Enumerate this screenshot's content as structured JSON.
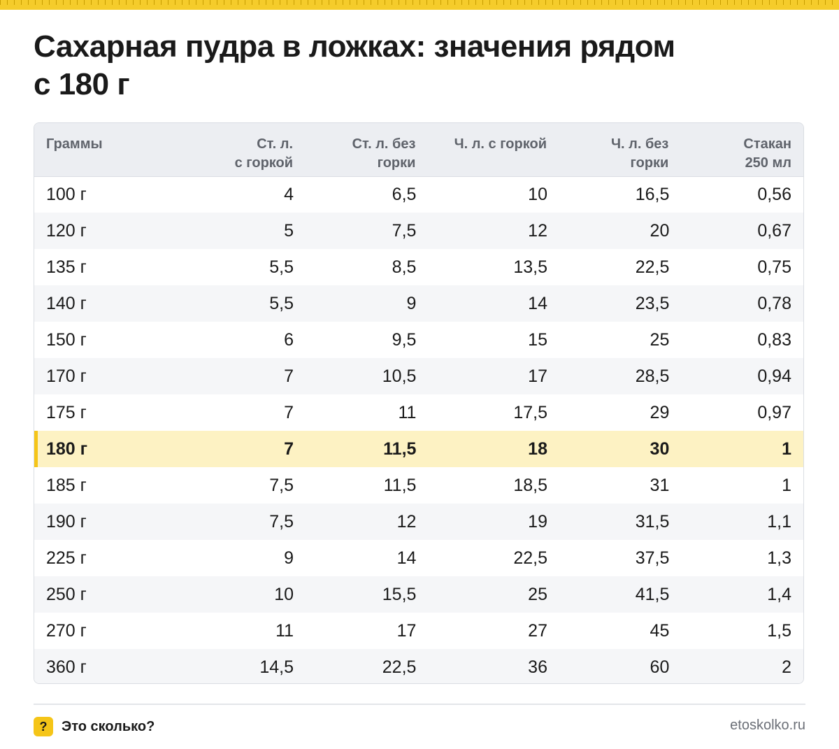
{
  "header": {
    "title_line1": "Сахарная пудра в ложках: значения рядом",
    "title_line2": "с 180 г"
  },
  "table": {
    "columns": [
      [
        "Граммы"
      ],
      [
        "Ст. л.",
        "с горкой"
      ],
      [
        "Ст. л. без",
        "горки"
      ],
      [
        "Ч. л. с горкой"
      ],
      [
        "Ч. л. без",
        "горки"
      ],
      [
        "Стакан",
        "250 мл"
      ]
    ],
    "highlight_row": 7,
    "highlight_color": "#fdf2c3",
    "highlight_marker_color": "#f5c518",
    "rows": [
      [
        "100 г",
        "4",
        "6,5",
        "10",
        "16,5",
        "0,56"
      ],
      [
        "120 г",
        "5",
        "7,5",
        "12",
        "20",
        "0,67"
      ],
      [
        "135 г",
        "5,5",
        "8,5",
        "13,5",
        "22,5",
        "0,75"
      ],
      [
        "140 г",
        "5,5",
        "9",
        "14",
        "23,5",
        "0,78"
      ],
      [
        "150 г",
        "6",
        "9,5",
        "15",
        "25",
        "0,83"
      ],
      [
        "170 г",
        "7",
        "10,5",
        "17",
        "28,5",
        "0,94"
      ],
      [
        "175 г",
        "7",
        "11",
        "17,5",
        "29",
        "0,97"
      ],
      [
        "180 г",
        "7",
        "11,5",
        "18",
        "30",
        "1"
      ],
      [
        "185 г",
        "7,5",
        "11,5",
        "18,5",
        "31",
        "1"
      ],
      [
        "190 г",
        "7,5",
        "12",
        "19",
        "31,5",
        "1,1"
      ],
      [
        "225 г",
        "9",
        "14",
        "22,5",
        "37,5",
        "1,3"
      ],
      [
        "250 г",
        "10",
        "15,5",
        "25",
        "41,5",
        "1,4"
      ],
      [
        "270 г",
        "11",
        "17",
        "27",
        "45",
        "1,5"
      ],
      [
        "360 г",
        "14,5",
        "22,5",
        "36",
        "60",
        "2"
      ]
    ]
  },
  "footer": {
    "icon_glyph": "?",
    "icon_name": "question-mark-icon",
    "brand": "Это сколько?",
    "site": "etoskolko.ru",
    "accent": "#f5c518"
  }
}
